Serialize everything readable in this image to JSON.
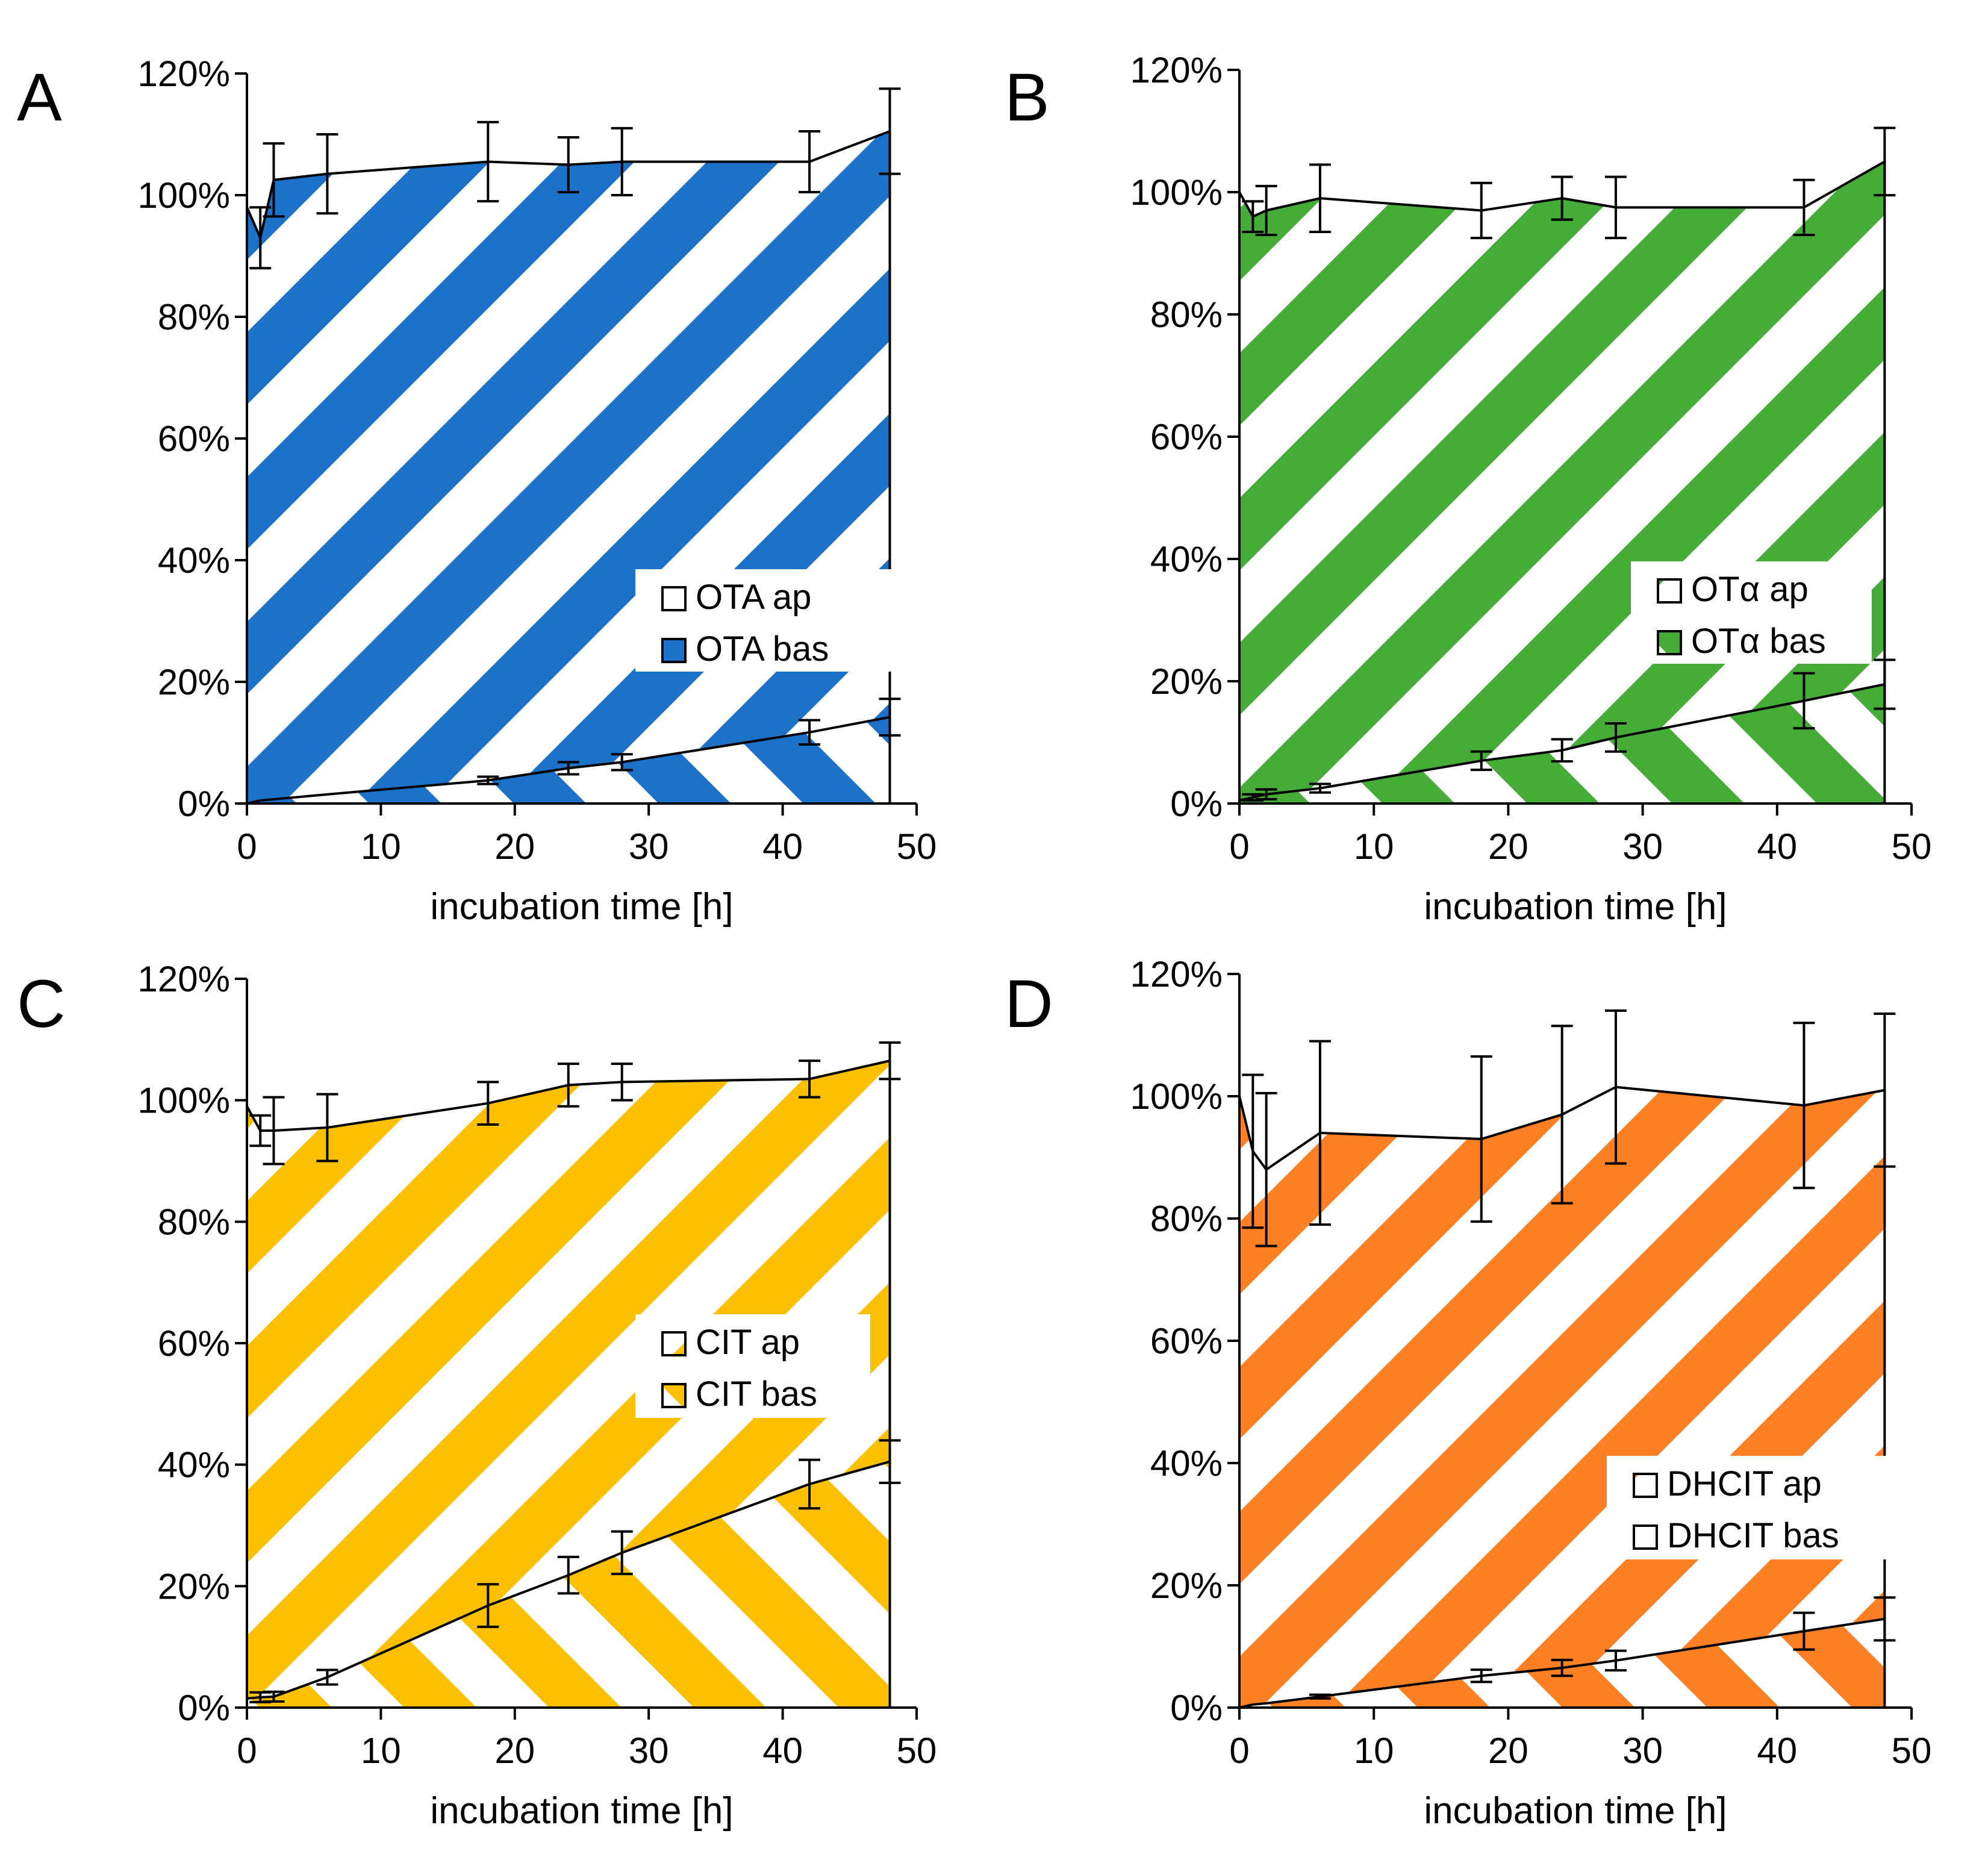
{
  "figure": {
    "x_tick_labels": [
      "0",
      "10",
      "20",
      "30",
      "40",
      "50"
    ],
    "y_tick_labels": [
      "0%",
      "20%",
      "40%",
      "60%",
      "80%",
      "100%",
      "120%"
    ]
  },
  "chart_data": [
    {
      "panel": "A",
      "type": "area",
      "color": "#1b72c8",
      "xlabel": "incubation time [h]",
      "xlim": [
        0,
        50
      ],
      "ylim": [
        0,
        120
      ],
      "legend_position": "center-right",
      "series": [
        {
          "name": "OTA ap",
          "x": [
            0,
            1,
            2,
            6,
            18,
            24,
            28,
            42,
            48
          ],
          "values": [
            98,
            93,
            102.5,
            103.5,
            105.5,
            105,
            105.5,
            105.5,
            110.5
          ],
          "errors": [
            0,
            5,
            6,
            6.5,
            6.5,
            4.5,
            5.5,
            5,
            7
          ]
        },
        {
          "name": "OTA bas",
          "x": [
            0,
            1,
            2,
            6,
            18,
            24,
            28,
            42,
            48
          ],
          "values": [
            0,
            0.5,
            0.7,
            1.5,
            3.8,
            5.8,
            6.8,
            11.7,
            14.2
          ],
          "errors": [
            0,
            0,
            0,
            0,
            0.6,
            1,
            1.3,
            2,
            3
          ]
        }
      ]
    },
    {
      "panel": "B",
      "type": "area",
      "color": "#46ac38",
      "xlabel": "incubation time [h]",
      "xlim": [
        0,
        50
      ],
      "ylim": [
        0,
        120
      ],
      "legend_position": "center-right",
      "series": [
        {
          "name": "OTα ap",
          "x": [
            0,
            1,
            2,
            6,
            18,
            24,
            28,
            42,
            48
          ],
          "values": [
            100,
            96,
            97,
            99,
            97,
            99,
            97.5,
            97.5,
            105
          ],
          "errors": [
            0,
            2.5,
            4,
            5.5,
            4.5,
            3.5,
            5,
            4.5,
            5.5
          ]
        },
        {
          "name": "OTα bas",
          "x": [
            0,
            1,
            2,
            6,
            18,
            24,
            28,
            42,
            48
          ],
          "values": [
            0.5,
            1,
            1.5,
            2.5,
            7,
            8.7,
            10.8,
            16.8,
            19.5
          ],
          "errors": [
            0,
            0.5,
            0.8,
            0.7,
            1.5,
            1.8,
            2.3,
            4.5,
            4
          ]
        }
      ]
    },
    {
      "panel": "C",
      "type": "area",
      "color": "#fdc000",
      "xlabel": "incubation time [h]",
      "xlim": [
        0,
        50
      ],
      "ylim": [
        0,
        120
      ],
      "legend_position": "center-right",
      "series": [
        {
          "name": "CIT ap",
          "x": [
            0,
            1,
            2,
            6,
            18,
            24,
            28,
            42,
            48
          ],
          "values": [
            99,
            95,
            95,
            95.5,
            99.5,
            102.5,
            103,
            103.5,
            106.5
          ],
          "errors": [
            0,
            2.5,
            5.5,
            5.5,
            3.5,
            3.5,
            3,
            3,
            3
          ]
        },
        {
          "name": "CIT bas",
          "x": [
            0,
            1,
            2,
            6,
            18,
            24,
            28,
            42,
            48
          ],
          "values": [
            1.5,
            1.7,
            1.8,
            5,
            16.8,
            21.8,
            25.5,
            36.8,
            40.5
          ],
          "errors": [
            0,
            0.8,
            0.8,
            1.2,
            3.5,
            3,
            3.5,
            4,
            3.5
          ]
        }
      ]
    },
    {
      "panel": "D",
      "type": "area",
      "color": "#fe8025",
      "xlabel": "incubation time [h]",
      "xlim": [
        0,
        50
      ],
      "ylim": [
        0,
        120
      ],
      "legend_position": "center-right",
      "series": [
        {
          "name": "DHCIT ap",
          "x": [
            0,
            1,
            2,
            6,
            18,
            24,
            28,
            42,
            48
          ],
          "values": [
            100,
            91,
            88,
            94,
            93,
            97,
            101.5,
            98.5,
            101
          ],
          "errors": [
            0,
            12.5,
            12.5,
            15,
            13.5,
            14.5,
            12.5,
            13.5,
            12.5
          ]
        },
        {
          "name": "DHCIT bas",
          "x": [
            0,
            1,
            2,
            6,
            18,
            24,
            28,
            42,
            48
          ],
          "values": [
            0,
            0.5,
            0.7,
            1.8,
            5.2,
            6.5,
            7.7,
            12.5,
            14.5
          ],
          "errors": [
            0,
            0,
            0,
            0.3,
            1,
            1.3,
            1.6,
            3,
            3.5
          ]
        }
      ]
    }
  ]
}
